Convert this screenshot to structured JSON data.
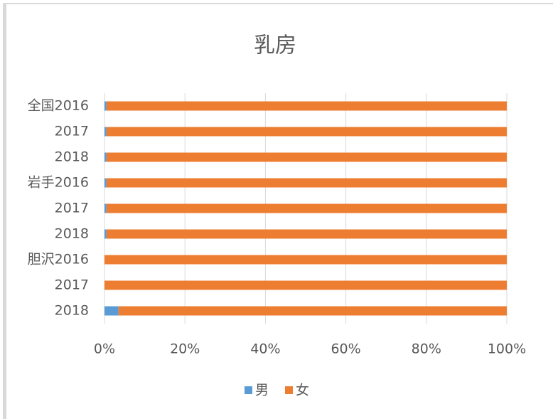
{
  "chart_data": {
    "type": "stacked_barh",
    "title": "乳房",
    "categories": [
      "全国2016",
      "2017",
      "2018",
      "岩手2016",
      "2017",
      "2018",
      "胆沢2016",
      "2017",
      "2018"
    ],
    "series": [
      {
        "name": "男",
        "color": "#5b9bd5",
        "values": [
          0.5,
          0.5,
          0.5,
          0.5,
          0.5,
          0.5,
          0,
          0,
          3.5
        ]
      },
      {
        "name": "女",
        "color": "#ed7d31",
        "values": [
          99.5,
          99.5,
          99.5,
          99.5,
          99.5,
          99.5,
          100,
          100,
          96.5
        ]
      }
    ],
    "xlim": [
      0,
      100
    ],
    "xticks": [
      {
        "value": 0,
        "label": "0%"
      },
      {
        "value": 20,
        "label": "20%"
      },
      {
        "value": 40,
        "label": "40%"
      },
      {
        "value": 60,
        "label": "60%"
      },
      {
        "value": 80,
        "label": "80%"
      },
      {
        "value": 100,
        "label": "100%"
      }
    ],
    "grid": true,
    "legend": "bottom"
  }
}
